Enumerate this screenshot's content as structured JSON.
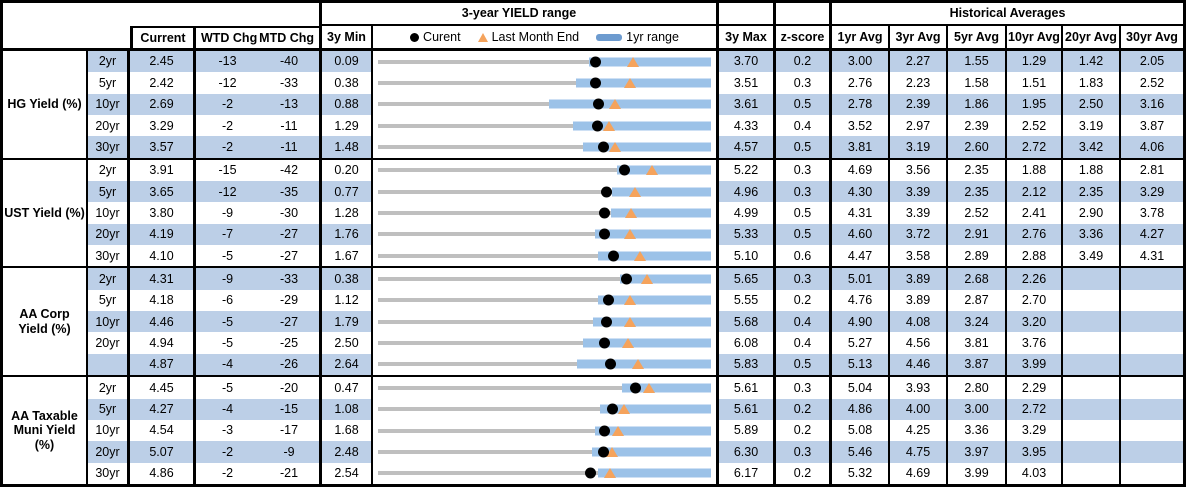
{
  "colors": {
    "shade": "#BCCFE7",
    "bar": "#9CC2E8",
    "legendbar": "#6D9BCF",
    "track": "#BFBFBF",
    "triangle": "#F5A35C",
    "dot": "#000000"
  },
  "chart_data": {
    "type": "table",
    "title": "3-year YIELD range",
    "note": "Each row shows a 3-year yield range strip chart: gray line spans 3y Min to 3y Max, blue bar is the 1yr range, black dot is current yield, orange triangle is last month end.",
    "header": {
      "range_title": "3-year YIELD range",
      "hist_title": "Historical Averages",
      "col_current": "Current",
      "col_wtd": "WTD Chg",
      "col_mtd": "MTD Chg",
      "col_min": "3y Min",
      "col_max": "3y Max",
      "col_z": "z-score",
      "avg_headers": [
        "1yr Avg",
        "3yr Avg",
        "5yr Avg",
        "10yr Avg",
        "20yr Avg",
        "30yr Avg"
      ],
      "legend_current": "Curent",
      "legend_lme": "Last Month End",
      "legend_range": "1yr range"
    },
    "groups": [
      {
        "label": "HG Yield (%)",
        "rows": [
          {
            "tenor": "2yr",
            "current": "2.45",
            "wtd": "-13",
            "mtd": "-40",
            "min": "0.09",
            "max": "3.70",
            "z": "0.2",
            "avgs": [
              "3.00",
              "2.27",
              "1.55",
              "1.29",
              "1.42",
              "2.05"
            ],
            "v_min": 0.09,
            "v_max": 3.7,
            "v_cur": 2.45,
            "v_lme": 2.85,
            "v_lo": 2.38
          },
          {
            "tenor": "5yr",
            "current": "2.42",
            "wtd": "-12",
            "mtd": "-33",
            "min": "0.38",
            "max": "3.51",
            "z": "0.3",
            "avgs": [
              "2.76",
              "2.23",
              "1.58",
              "1.51",
              "1.83",
              "2.52"
            ],
            "v_min": 0.38,
            "v_max": 3.51,
            "v_cur": 2.42,
            "v_lme": 2.75,
            "v_lo": 2.24
          },
          {
            "tenor": "10yr",
            "current": "2.69",
            "wtd": "-2",
            "mtd": "-13",
            "min": "0.88",
            "max": "3.61",
            "z": "0.5",
            "avgs": [
              "2.78",
              "2.39",
              "1.86",
              "1.95",
              "2.50",
              "3.16"
            ],
            "v_min": 0.88,
            "v_max": 3.61,
            "v_cur": 2.69,
            "v_lme": 2.82,
            "v_lo": 2.28
          },
          {
            "tenor": "20yr",
            "current": "3.29",
            "wtd": "-2",
            "mtd": "-11",
            "min": "1.29",
            "max": "4.33",
            "z": "0.4",
            "avgs": [
              "3.52",
              "2.97",
              "2.39",
              "2.52",
              "3.19",
              "3.87"
            ],
            "v_min": 1.29,
            "v_max": 4.33,
            "v_cur": 3.29,
            "v_lme": 3.4,
            "v_lo": 3.07
          },
          {
            "tenor": "30yr",
            "current": "3.57",
            "wtd": "-2",
            "mtd": "-11",
            "min": "1.48",
            "max": "4.57",
            "z": "0.5",
            "avgs": [
              "3.81",
              "3.19",
              "2.60",
              "2.72",
              "3.42",
              "4.06"
            ],
            "v_min": 1.48,
            "v_max": 4.57,
            "v_cur": 3.57,
            "v_lme": 3.68,
            "v_lo": 3.38
          }
        ]
      },
      {
        "label": "UST Yield (%)",
        "rows": [
          {
            "tenor": "2yr",
            "current": "3.91",
            "wtd": "-15",
            "mtd": "-42",
            "min": "0.20",
            "max": "5.22",
            "z": "0.3",
            "avgs": [
              "4.69",
              "3.56",
              "2.35",
              "1.88",
              "1.88",
              "2.81"
            ],
            "v_min": 0.2,
            "v_max": 5.22,
            "v_cur": 3.91,
            "v_lme": 4.33,
            "v_lo": 3.81
          },
          {
            "tenor": "5yr",
            "current": "3.65",
            "wtd": "-12",
            "mtd": "-35",
            "min": "0.77",
            "max": "4.96",
            "z": "0.3",
            "avgs": [
              "4.30",
              "3.39",
              "2.35",
              "2.12",
              "2.35",
              "3.29"
            ],
            "v_min": 0.77,
            "v_max": 4.96,
            "v_cur": 3.65,
            "v_lme": 4.0,
            "v_lo": 3.71
          },
          {
            "tenor": "10yr",
            "current": "3.80",
            "wtd": "-9",
            "mtd": "-30",
            "min": "1.28",
            "max": "4.99",
            "z": "0.5",
            "avgs": [
              "4.31",
              "3.39",
              "2.52",
              "2.41",
              "2.90",
              "3.78"
            ],
            "v_min": 1.28,
            "v_max": 4.99,
            "v_cur": 3.8,
            "v_lme": 4.1,
            "v_lo": 3.88
          },
          {
            "tenor": "20yr",
            "current": "4.19",
            "wtd": "-7",
            "mtd": "-27",
            "min": "1.76",
            "max": "5.33",
            "z": "0.5",
            "avgs": [
              "4.60",
              "3.72",
              "2.91",
              "2.76",
              "3.36",
              "4.27"
            ],
            "v_min": 1.76,
            "v_max": 5.33,
            "v_cur": 4.19,
            "v_lme": 4.46,
            "v_lo": 4.09
          },
          {
            "tenor": "30yr",
            "current": "4.10",
            "wtd": "-5",
            "mtd": "-27",
            "min": "1.67",
            "max": "5.10",
            "z": "0.6",
            "avgs": [
              "4.47",
              "3.58",
              "2.89",
              "2.88",
              "3.49",
              "4.31"
            ],
            "v_min": 1.67,
            "v_max": 5.1,
            "v_cur": 4.1,
            "v_lme": 4.37,
            "v_lo": 3.94
          }
        ]
      },
      {
        "label": "AA Corp Yield (%)",
        "rows": [
          {
            "tenor": "2yr",
            "current": "4.31",
            "wtd": "-9",
            "mtd": "-33",
            "min": "0.38",
            "max": "5.65",
            "z": "0.3",
            "avgs": [
              "5.01",
              "3.89",
              "2.68",
              "2.26",
              "",
              ""
            ],
            "v_min": 0.38,
            "v_max": 5.65,
            "v_cur": 4.31,
            "v_lme": 4.64,
            "v_lo": 4.21
          },
          {
            "tenor": "5yr",
            "current": "4.18",
            "wtd": "-6",
            "mtd": "-29",
            "min": "1.12",
            "max": "5.55",
            "z": "0.2",
            "avgs": [
              "4.76",
              "3.89",
              "2.87",
              "2.70",
              "",
              ""
            ],
            "v_min": 1.12,
            "v_max": 5.55,
            "v_cur": 4.18,
            "v_lme": 4.47,
            "v_lo": 4.05
          },
          {
            "tenor": "10yr",
            "current": "4.46",
            "wtd": "-5",
            "mtd": "-27",
            "min": "1.79",
            "max": "5.68",
            "z": "0.4",
            "avgs": [
              "4.90",
              "4.08",
              "3.24",
              "3.20",
              "",
              ""
            ],
            "v_min": 1.79,
            "v_max": 5.68,
            "v_cur": 4.46,
            "v_lme": 4.73,
            "v_lo": 4.3
          },
          {
            "tenor": "20yr",
            "current": "4.94",
            "wtd": "-5",
            "mtd": "-25",
            "min": "2.50",
            "max": "6.08",
            "z": "0.4",
            "avgs": [
              "5.27",
              "4.56",
              "3.81",
              "3.76",
              "",
              ""
            ],
            "v_min": 2.5,
            "v_max": 6.08,
            "v_cur": 4.94,
            "v_lme": 5.19,
            "v_lo": 4.7
          },
          {
            "tenor": "",
            "current": "4.87",
            "wtd": "-4",
            "mtd": "-26",
            "min": "2.64",
            "max": "5.83",
            "z": "0.5",
            "avgs": [
              "5.13",
              "4.46",
              "3.87",
              "3.99",
              "",
              ""
            ],
            "v_min": 2.64,
            "v_max": 5.83,
            "v_cur": 4.87,
            "v_lme": 5.13,
            "v_lo": 4.55
          }
        ]
      },
      {
        "label": "AA Taxable Muni Yield (%)",
        "rows": [
          {
            "tenor": "2yr",
            "current": "4.45",
            "wtd": "-5",
            "mtd": "-20",
            "min": "0.47",
            "max": "5.61",
            "z": "0.3",
            "avgs": [
              "5.04",
              "3.93",
              "2.80",
              "2.29",
              "",
              ""
            ],
            "v_min": 0.47,
            "v_max": 5.61,
            "v_cur": 4.45,
            "v_lme": 4.65,
            "v_lo": 4.23
          },
          {
            "tenor": "5yr",
            "current": "4.27",
            "wtd": "-4",
            "mtd": "-15",
            "min": "1.08",
            "max": "5.61",
            "z": "0.2",
            "avgs": [
              "4.86",
              "4.00",
              "3.00",
              "2.72",
              "",
              ""
            ],
            "v_min": 1.08,
            "v_max": 5.61,
            "v_cur": 4.27,
            "v_lme": 4.42,
            "v_lo": 4.1
          },
          {
            "tenor": "10yr",
            "current": "4.54",
            "wtd": "-3",
            "mtd": "-17",
            "min": "1.68",
            "max": "5.89",
            "z": "0.2",
            "avgs": [
              "5.08",
              "4.25",
              "3.36",
              "3.29",
              "",
              ""
            ],
            "v_min": 1.68,
            "v_max": 5.89,
            "v_cur": 4.54,
            "v_lme": 4.71,
            "v_lo": 4.42
          },
          {
            "tenor": "20yr",
            "current": "5.07",
            "wtd": "-2",
            "mtd": "-9",
            "min": "2.48",
            "max": "6.30",
            "z": "0.3",
            "avgs": [
              "5.46",
              "4.75",
              "3.97",
              "3.95",
              "",
              ""
            ],
            "v_min": 2.48,
            "v_max": 6.3,
            "v_cur": 5.07,
            "v_lme": 5.16,
            "v_lo": 4.94
          },
          {
            "tenor": "30yr",
            "current": "4.86",
            "wtd": "-2",
            "mtd": "-21",
            "min": "2.54",
            "max": "6.17",
            "z": "0.2",
            "avgs": [
              "5.32",
              "4.69",
              "3.99",
              "4.03",
              "",
              ""
            ],
            "v_min": 2.54,
            "v_max": 6.17,
            "v_cur": 4.86,
            "v_lme": 5.07,
            "v_lo": 4.94
          }
        ]
      }
    ]
  }
}
